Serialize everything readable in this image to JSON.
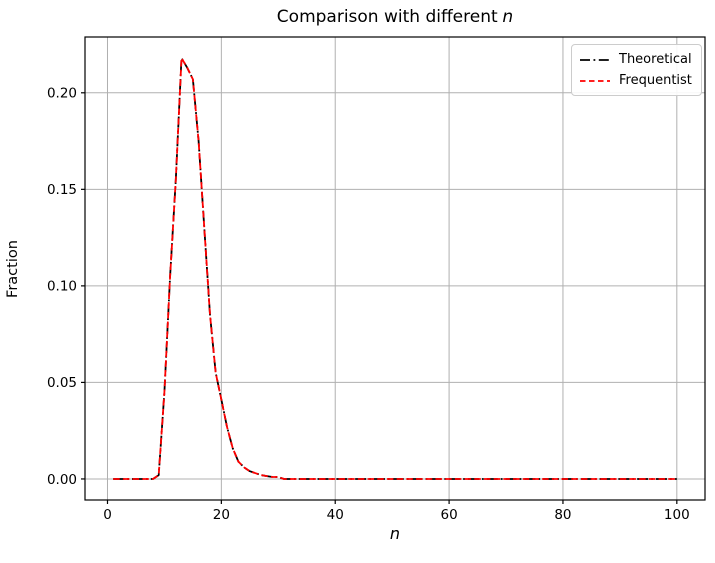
{
  "figure": {
    "title": {
      "prefix": "Comparison with different",
      "italic_var": "n"
    },
    "xlabel": "n",
    "ylabel": "Fraction",
    "background": "#ffffff"
  },
  "legend": {
    "position": "upper right",
    "entries": [
      {
        "label": "Theoretical",
        "color": "#000000",
        "linestyle": "dashdot"
      },
      {
        "label": "Frequentist",
        "color": "#ff0000",
        "linestyle": "dashed"
      }
    ]
  },
  "chart_data": {
    "type": "line",
    "title": "Comparison with different n",
    "xlabel": "n",
    "ylabel": "Fraction",
    "grid": true,
    "grid_color": "#b0b0b0",
    "spine_color": "#000000",
    "legend_position": "upper right",
    "xlim": [
      -3.95,
      104.95
    ],
    "ylim": [
      -0.0109,
      0.2289
    ],
    "xticks": {
      "values": [
        0,
        20,
        40,
        60,
        80,
        100
      ],
      "labels": [
        "0",
        "20",
        "40",
        "60",
        "80",
        "100"
      ]
    },
    "yticks": {
      "values": [
        0,
        0.05,
        0.1,
        0.15,
        0.2
      ],
      "labels": [
        "0.00",
        "0.05",
        "0.10",
        "0.15",
        "0.20"
      ]
    },
    "x_start": 1,
    "x_step": 1,
    "x_end": 100,
    "peak": {
      "x": 13,
      "y": 0.218
    },
    "series": [
      {
        "name": "Theoretical",
        "color": "#000000",
        "linestyle": "dashdot",
        "values": [
          0,
          0,
          0,
          0,
          0,
          0,
          0,
          0,
          0.002,
          0.045,
          0.105,
          0.155,
          0.218,
          0.213,
          0.207,
          0.175,
          0.13,
          0.085,
          0.055,
          0.041,
          0.027,
          0.016,
          0.009,
          0.006,
          0.004,
          0.003,
          0.002,
          0.0015,
          0.001,
          0.001,
          0,
          0,
          0,
          0,
          0,
          0,
          0,
          0,
          0,
          0,
          0,
          0,
          0,
          0,
          0,
          0,
          0,
          0,
          0,
          0,
          0,
          0,
          0,
          0,
          0,
          0,
          0,
          0,
          0,
          0,
          0,
          0,
          0,
          0,
          0,
          0,
          0,
          0,
          0,
          0,
          0,
          0,
          0,
          0,
          0,
          0,
          0,
          0,
          0,
          0,
          0,
          0,
          0,
          0,
          0,
          0,
          0,
          0,
          0,
          0,
          0,
          0,
          0,
          0,
          0,
          0,
          0,
          0,
          0,
          0
        ]
      },
      {
        "name": "Frequentist",
        "color": "#ff0000",
        "linestyle": "dashed",
        "values": [
          0,
          0,
          0,
          0,
          0,
          0,
          0,
          0,
          0.002,
          0.045,
          0.105,
          0.155,
          0.218,
          0.213,
          0.207,
          0.175,
          0.13,
          0.085,
          0.055,
          0.041,
          0.027,
          0.016,
          0.009,
          0.006,
          0.004,
          0.003,
          0.002,
          0.0015,
          0.001,
          0.001,
          0,
          0,
          0,
          0,
          0,
          0,
          0,
          0,
          0,
          0,
          0,
          0,
          0,
          0,
          0,
          0,
          0,
          0,
          0,
          0,
          0,
          0,
          0,
          0,
          0,
          0,
          0,
          0,
          0,
          0,
          0,
          0,
          0,
          0,
          0,
          0,
          0,
          0,
          0,
          0,
          0,
          0,
          0,
          0,
          0,
          0,
          0,
          0,
          0,
          0,
          0,
          0,
          0,
          0,
          0,
          0,
          0,
          0,
          0,
          0,
          0,
          0,
          0,
          0,
          0,
          0,
          0,
          0,
          0,
          0
        ]
      }
    ]
  }
}
